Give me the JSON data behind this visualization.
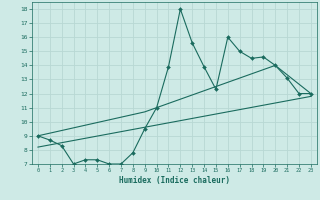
{
  "xlabel": "Humidex (Indice chaleur)",
  "background_color": "#ceeae6",
  "grid_color": "#b8d8d4",
  "line_color": "#1a6b5e",
  "xlim": [
    -0.5,
    23.5
  ],
  "ylim": [
    7,
    18.5
  ],
  "xticks": [
    0,
    1,
    2,
    3,
    4,
    5,
    6,
    7,
    8,
    9,
    10,
    11,
    12,
    13,
    14,
    15,
    16,
    17,
    18,
    19,
    20,
    21,
    22,
    23
  ],
  "yticks": [
    7,
    8,
    9,
    10,
    11,
    12,
    13,
    14,
    15,
    16,
    17,
    18
  ],
  "series1_x": [
    0,
    1,
    2,
    3,
    4,
    5,
    6,
    7,
    8,
    9,
    10,
    11,
    12,
    13,
    14,
    15,
    16,
    17,
    18,
    19,
    20,
    21,
    22,
    23
  ],
  "series1_y": [
    9.0,
    8.7,
    8.3,
    7.0,
    7.3,
    7.3,
    7.0,
    7.0,
    7.8,
    9.5,
    11.0,
    13.9,
    18.0,
    15.6,
    13.9,
    12.3,
    16.0,
    15.0,
    14.5,
    14.6,
    14.0,
    13.1,
    12.0,
    12.0
  ],
  "series2_x": [
    0,
    9,
    20,
    23
  ],
  "series2_y": [
    9.0,
    10.7,
    14.0,
    12.0
  ],
  "series3_x": [
    0,
    23
  ],
  "series3_y": [
    8.2,
    11.8
  ]
}
